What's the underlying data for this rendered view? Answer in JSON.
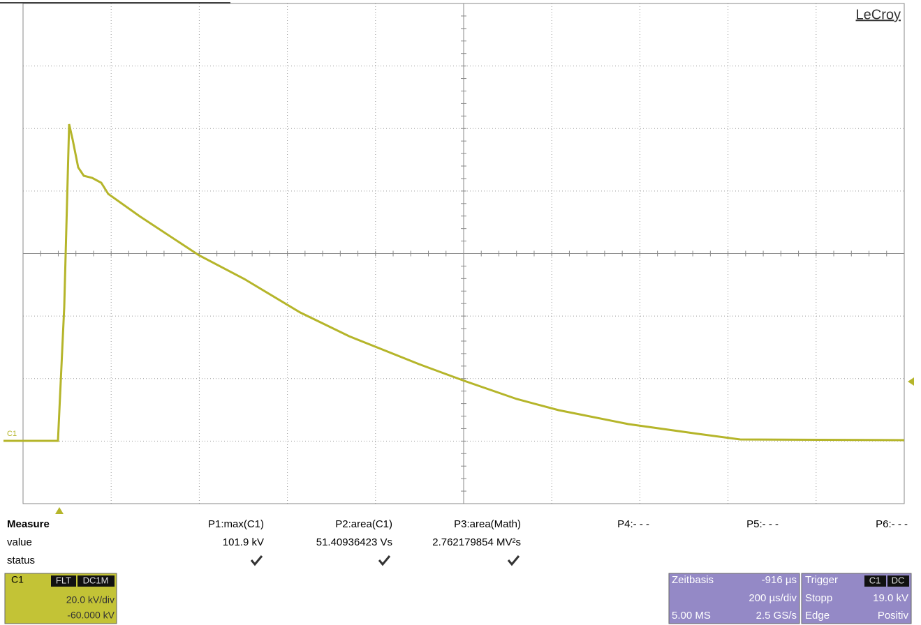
{
  "brand": "LeCroy",
  "trace_label": "C1",
  "measure": {
    "header": "Measure",
    "params": [
      "P1:max(C1)",
      "P2:area(C1)",
      "P3:area(Math)",
      "P4:- - -",
      "P5:- - -",
      "P6:- - -"
    ],
    "value_label": "value",
    "values": [
      "101.9 kV",
      "51.40936423 Vs",
      "2.762179854 MV²s"
    ],
    "status_label": "status"
  },
  "channel": {
    "name": "C1",
    "badges": [
      "FLT",
      "DC1M"
    ],
    "scale": "20.0 kV/div",
    "offset": "-60.000 kV"
  },
  "timebase": {
    "label": "Zeitbasis",
    "delay": "-916 µs",
    "scale": "200 µs/div",
    "samples": "5.00 MS",
    "rate": "2.5 GS/s"
  },
  "trigger": {
    "label": "Trigger",
    "badges": [
      "C1",
      "DC"
    ],
    "mode": "Stopp",
    "level": "19.0 kV",
    "type": "Edge",
    "slope": "Positiv"
  }
}
